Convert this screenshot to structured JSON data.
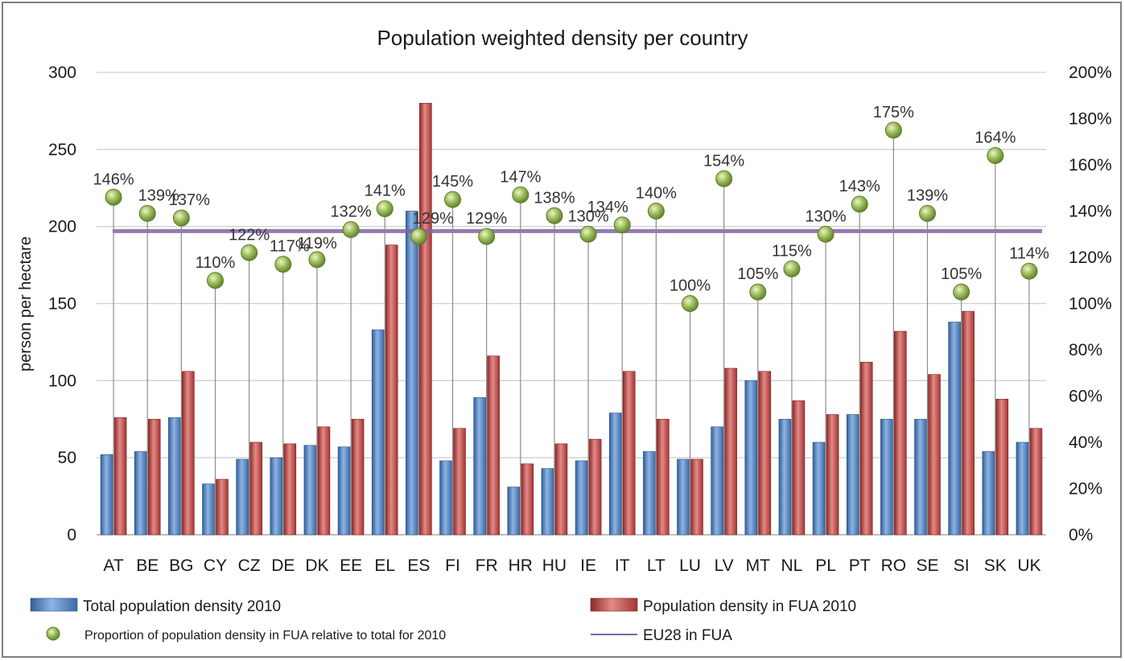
{
  "chart_data": {
    "type": "bar",
    "title": "Population weighted density per country",
    "ylabel": "person per hectare",
    "ylim": [
      0,
      300
    ],
    "yticks": [
      "0",
      "50",
      "100",
      "150",
      "200",
      "250",
      "300"
    ],
    "y2lim": [
      0,
      200
    ],
    "y2ticks": [
      "0%",
      "20%",
      "40%",
      "60%",
      "80%",
      "100%",
      "120%",
      "140%",
      "160%",
      "180%",
      "200%"
    ],
    "grid": true,
    "legend_position": "bottom",
    "categories": [
      "AT",
      "BE",
      "BG",
      "CY",
      "CZ",
      "DE",
      "DK",
      "EE",
      "EL",
      "ES",
      "FI",
      "FR",
      "HR",
      "HU",
      "IE",
      "IT",
      "LT",
      "LU",
      "LV",
      "MT",
      "NL",
      "PL",
      "PT",
      "RO",
      "SE",
      "SI",
      "SK",
      "UK"
    ],
    "series": [
      {
        "name": "Total population density 2010",
        "type": "bar",
        "axis": "left",
        "color": "#4f81bd",
        "values": [
          52,
          54,
          76,
          33,
          49,
          50,
          58,
          57,
          133,
          210,
          48,
          89,
          31,
          43,
          48,
          79,
          54,
          49,
          70,
          100,
          75,
          60,
          78,
          75,
          75,
          138,
          54,
          60
        ]
      },
      {
        "name": "Population density in FUA 2010",
        "type": "bar",
        "axis": "left",
        "color": "#c0504d",
        "values": [
          76,
          75,
          106,
          36,
          60,
          59,
          70,
          75,
          188,
          280,
          69,
          116,
          46,
          59,
          62,
          106,
          75,
          49,
          108,
          106,
          87,
          78,
          112,
          132,
          104,
          145,
          88,
          69
        ]
      },
      {
        "name": "Proportion of population density in FUA relative to total for 2010",
        "type": "scatter",
        "axis": "right",
        "color": "#9bbb59",
        "values": [
          146,
          139,
          137,
          110,
          122,
          117,
          119,
          132,
          141,
          129,
          145,
          129,
          147,
          138,
          130,
          134,
          140,
          100,
          154,
          105,
          115,
          130,
          143,
          175,
          139,
          105,
          164,
          114
        ],
        "labels": [
          "146%",
          "139%",
          "137%",
          "110%",
          "122%",
          "117%",
          "119%",
          "132%",
          "141%",
          "129%",
          "145%",
          "129%",
          "147%",
          "138%",
          "130%",
          "134%",
          "140%",
          "100%",
          "154%",
          "105%",
          "115%",
          "130%",
          "143%",
          "175%",
          "139%",
          "105%",
          "164%",
          "114%"
        ]
      },
      {
        "name": "EU28 in FUA",
        "type": "line",
        "axis": "left",
        "color": "#8064a2",
        "value": 197
      }
    ]
  }
}
